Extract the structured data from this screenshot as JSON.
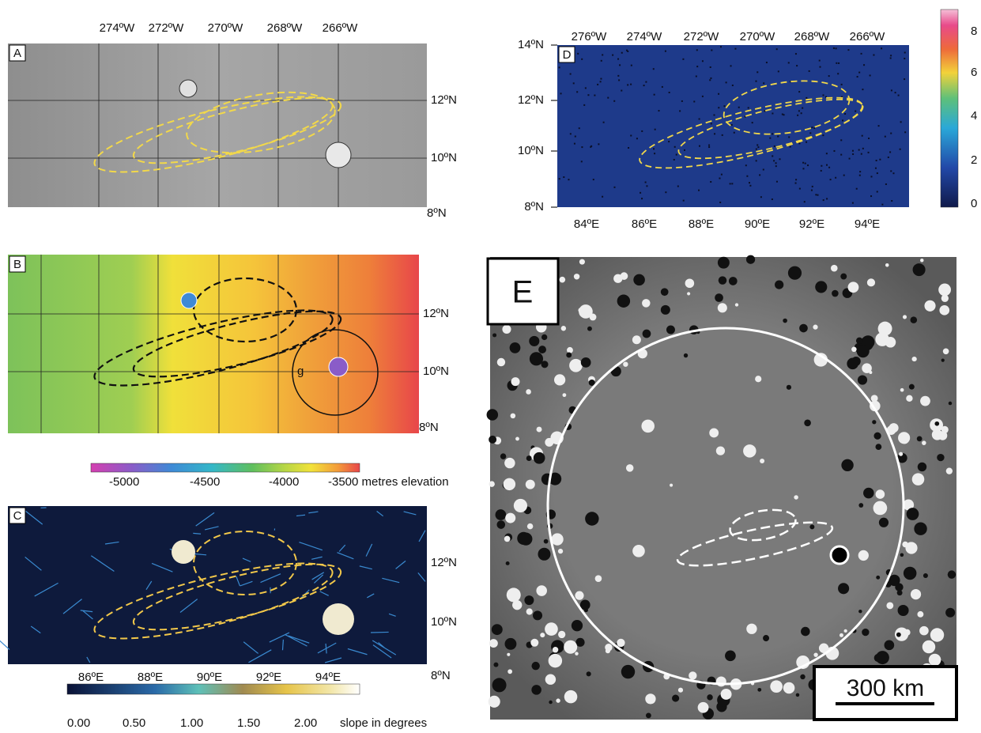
{
  "panels": {
    "A": {
      "label": "A",
      "top_labels": [
        "274ºW",
        "272ºW",
        "270ºW",
        "268ºW",
        "266ºW"
      ],
      "right_labels": [
        "12ºN",
        "10ºN",
        "8ºN"
      ]
    },
    "B": {
      "label": "B",
      "right_labels": [
        "12ºN",
        "10ºN",
        "8ºN"
      ],
      "feature_label": "g"
    },
    "C": {
      "label": "C",
      "right_labels": [
        "12ºN",
        "10ºN",
        "8ºN"
      ],
      "bottom_labels": [
        "86ºE",
        "88ºE",
        "90ºE",
        "92ºE",
        "94ºE"
      ]
    },
    "D": {
      "label": "D",
      "top_labels": [
        "276ºW",
        "274ºW",
        "272ºW",
        "270ºW",
        "268ºW",
        "266ºW"
      ],
      "left_labels": [
        "14ºN",
        "12ºN",
        "10ºN",
        "8ºN"
      ],
      "bottom_labels": [
        "84ºE",
        "86ºE",
        "88ºE",
        "90ºE",
        "92ºE",
        "94ºE"
      ]
    },
    "E": {
      "label": "E",
      "scale_bar": "300 km"
    }
  },
  "colorbars": {
    "elevation": {
      "labels": [
        "-5000",
        "-4500",
        "-4000",
        "-3500 metres elevation"
      ]
    },
    "slope": {
      "labels": [
        "0.00",
        "0.50",
        "1.00",
        "1.50",
        "2.00",
        "slope in degrees"
      ]
    },
    "density": {
      "labels": [
        "8",
        "6",
        "4",
        "2",
        "0"
      ]
    }
  }
}
